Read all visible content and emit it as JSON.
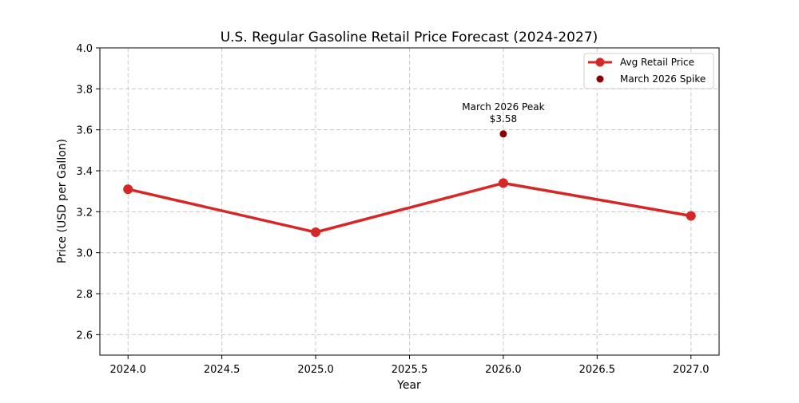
{
  "chart_data": {
    "type": "line",
    "title": "U.S. Regular Gasoline Retail Price Forecast (2024-2027)",
    "xlabel": "Year",
    "ylabel": "Price (USD per Gallon)",
    "xlim": [
      2023.85,
      2027.15
    ],
    "ylim": [
      2.5,
      4.0
    ],
    "xticks": [
      2024.0,
      2024.5,
      2025.0,
      2025.5,
      2026.0,
      2026.5,
      2027.0
    ],
    "xtick_labels": [
      "2024.0",
      "2024.5",
      "2025.0",
      "2025.5",
      "2026.0",
      "2026.5",
      "2027.0"
    ],
    "yticks": [
      2.6,
      2.8,
      3.0,
      3.2,
      3.4,
      3.6,
      3.8,
      4.0
    ],
    "ytick_labels": [
      "2.6",
      "2.8",
      "3.0",
      "3.2",
      "3.4",
      "3.6",
      "3.8",
      "4.0"
    ],
    "grid": true,
    "legend_position": "top-right",
    "series": [
      {
        "name": "Avg Retail Price",
        "kind": "line",
        "color": "#d62728",
        "x": [
          2024,
          2025,
          2026,
          2027
        ],
        "values": [
          3.31,
          3.1,
          3.34,
          3.18
        ]
      },
      {
        "name": "March 2026 Spike",
        "kind": "scatter",
        "color": "#8b0000",
        "x": [
          2026
        ],
        "values": [
          3.58
        ]
      }
    ],
    "annotations": [
      {
        "line1": "March 2026 Peak",
        "line2": "$3.58",
        "x": 2026,
        "y": 3.58
      }
    ]
  }
}
